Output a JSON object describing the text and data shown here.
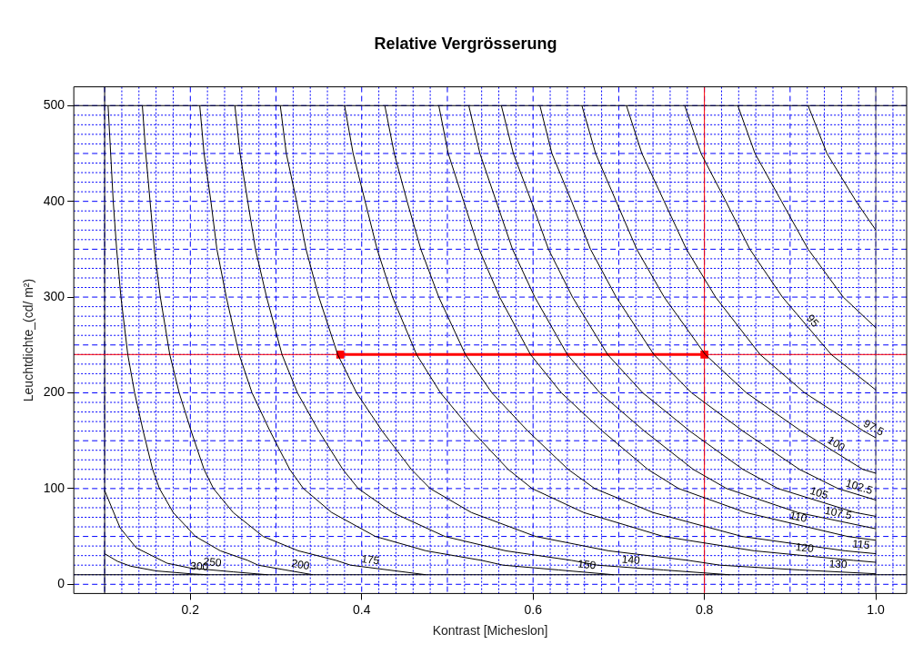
{
  "chart_data": {
    "type": "line",
    "title": "Relative Vergrösserung",
    "xlabel": "Kontrast [Micheslon]",
    "ylabel": "Leuchtdichte_(cd/ m²)",
    "xlim": [
      0.064,
      1.036
    ],
    "ylim": [
      -9.6,
      519.6
    ],
    "xticks": [
      {
        "value": 0.1,
        "label": null
      },
      {
        "value": 0.12,
        "label": null
      },
      {
        "value": 0.14,
        "label": null
      },
      {
        "value": 0.16,
        "label": null
      },
      {
        "value": 0.18,
        "label": null
      },
      0.2,
      {
        "value": 0.22,
        "label": null
      },
      {
        "value": 0.24,
        "label": null
      },
      {
        "value": 0.26,
        "label": null
      },
      {
        "value": 0.28,
        "label": null
      },
      {
        "value": 0.3,
        "label": null
      },
      {
        "value": 0.32,
        "label": null
      },
      {
        "value": 0.34,
        "label": null
      },
      {
        "value": 0.36,
        "label": null
      },
      {
        "value": 0.38,
        "label": null
      },
      0.4,
      {
        "value": 0.42,
        "label": null
      },
      {
        "value": 0.44,
        "label": null
      },
      {
        "value": 0.46,
        "label": null
      },
      {
        "value": 0.48,
        "label": null
      },
      {
        "value": 0.5,
        "label": null
      },
      {
        "value": 0.52,
        "label": null
      },
      {
        "value": 0.54,
        "label": null
      },
      {
        "value": 0.56,
        "label": null
      },
      {
        "value": 0.58,
        "label": null
      },
      0.6,
      {
        "value": 0.62,
        "label": null
      },
      {
        "value": 0.64,
        "label": null
      },
      {
        "value": 0.66,
        "label": null
      },
      {
        "value": 0.68,
        "label": null
      },
      {
        "value": 0.7,
        "label": null
      },
      {
        "value": 0.72,
        "label": null
      },
      {
        "value": 0.74,
        "label": null
      },
      {
        "value": 0.76,
        "label": null
      },
      {
        "value": 0.78,
        "label": null
      },
      0.8,
      {
        "value": 0.82,
        "label": null
      },
      {
        "value": 0.84,
        "label": null
      },
      {
        "value": 0.86,
        "label": null
      },
      {
        "value": 0.88,
        "label": null
      },
      {
        "value": 0.9,
        "label": null
      },
      {
        "value": 0.92,
        "label": null
      },
      {
        "value": 0.94,
        "label": null
      },
      {
        "value": 0.96,
        "label": null
      },
      {
        "value": 0.98,
        "label": null
      },
      {
        "value": 1,
        "label": "1.0"
      },
      {
        "value": 1.02,
        "label": null
      }
    ],
    "yticks": [
      0,
      {
        "value": 10,
        "label": null
      },
      {
        "value": 20,
        "label": null
      },
      {
        "value": 30,
        "label": null
      },
      {
        "value": 40,
        "label": null
      },
      {
        "value": 50,
        "label": null
      },
      {
        "value": 60,
        "label": null
      },
      {
        "value": 70,
        "label": null
      },
      {
        "value": 80,
        "label": null
      },
      {
        "value": 90,
        "label": null
      },
      100,
      {
        "value": 110,
        "label": null
      },
      {
        "value": 120,
        "label": null
      },
      {
        "value": 130,
        "label": null
      },
      {
        "value": 140,
        "label": null
      },
      {
        "value": 150,
        "label": null
      },
      {
        "value": 160,
        "label": null
      },
      {
        "value": 170,
        "label": null
      },
      {
        "value": 180,
        "label": null
      },
      {
        "value": 190,
        "label": null
      },
      200,
      {
        "value": 210,
        "label": null
      },
      {
        "value": 220,
        "label": null
      },
      {
        "value": 230,
        "label": null
      },
      {
        "value": 240,
        "label": null
      },
      {
        "value": 250,
        "label": null
      },
      {
        "value": 260,
        "label": null
      },
      {
        "value": 270,
        "label": null
      },
      {
        "value": 280,
        "label": null
      },
      {
        "value": 290,
        "label": null
      },
      300,
      {
        "value": 310,
        "label": null
      },
      {
        "value": 320,
        "label": null
      },
      {
        "value": 330,
        "label": null
      },
      {
        "value": 340,
        "label": null
      },
      {
        "value": 350,
        "label": null
      },
      {
        "value": 360,
        "label": null
      },
      {
        "value": 370,
        "label": null
      },
      {
        "value": 380,
        "label": null
      },
      {
        "value": 390,
        "label": null
      },
      400,
      {
        "value": 410,
        "label": null
      },
      {
        "value": 420,
        "label": null
      },
      {
        "value": 430,
        "label": null
      },
      {
        "value": 440,
        "label": null
      },
      {
        "value": 450,
        "label": null
      },
      {
        "value": 460,
        "label": null
      },
      {
        "value": 470,
        "label": null
      },
      {
        "value": 480,
        "label": null
      },
      {
        "value": 490,
        "label": null
      },
      500
    ],
    "grid": true,
    "marker": "none",
    "line_style": "solid",
    "ref_lines": [
      {
        "axis": "x",
        "value": 0.1,
        "color": "#000000"
      },
      {
        "axis": "x",
        "value": 1,
        "color": "#555555"
      },
      {
        "axis": "y",
        "value": 10,
        "color": "#000000"
      },
      {
        "axis": "y",
        "value": 500,
        "color": "#000000"
      },
      {
        "axis": "x",
        "value": 0.8,
        "color": "#ff0000"
      },
      {
        "axis": "y",
        "value": 240,
        "color": "#ff0000"
      }
    ],
    "series": [
      {
        "name": "300",
        "color": "#000000",
        "x": [
          0.1,
          0.115,
          0.13,
          0.16,
          0.2,
          0.22
        ],
        "values": [
          32,
          24,
          19,
          14,
          11,
          10
        ]
      },
      {
        "name": "250",
        "color": "#000000",
        "x": [
          0.1,
          0.118,
          0.137,
          0.173,
          0.2,
          0.25,
          0.29
        ],
        "values": [
          98,
          59,
          38,
          22,
          17,
          13,
          10
        ]
      },
      {
        "name": "200",
        "color": "#000000",
        "x": [
          0.104,
          0.107,
          0.11,
          0.114,
          0.119,
          0.127,
          0.135,
          0.145,
          0.156,
          0.164,
          0.18,
          0.206,
          0.235,
          0.267,
          0.279,
          0.311,
          0.343
        ],
        "values": [
          500,
          450,
          400,
          350,
          300,
          240,
          200,
          160,
          120,
          100,
          75,
          50,
          35,
          25,
          20,
          15,
          10
        ]
      },
      {
        "name": "175",
        "color": "#000000",
        "x": [
          0.144,
          0.148,
          0.153,
          0.158,
          0.165,
          0.176,
          0.187,
          0.201,
          0.216,
          0.227,
          0.25,
          0.285,
          0.326,
          0.37,
          0.387,
          0.431,
          0.475
        ],
        "values": [
          500,
          450,
          400,
          350,
          300,
          240,
          200,
          160,
          120,
          100,
          75,
          50,
          35,
          25,
          20,
          15,
          10
        ]
      },
      {
        "name": "150",
        "color": "#000000",
        "x": [
          0.211,
          0.216,
          0.224,
          0.231,
          0.242,
          0.257,
          0.272,
          0.293,
          0.316,
          0.332,
          0.365,
          0.416,
          0.475,
          0.54,
          0.565,
          0.63,
          0.694
        ],
        "values": [
          500,
          450,
          400,
          350,
          300,
          240,
          200,
          160,
          120,
          100,
          75,
          50,
          35,
          25,
          20,
          15,
          10
        ]
      },
      {
        "name": "140",
        "color": "#000000",
        "x": [
          0.252,
          0.258,
          0.267,
          0.276,
          0.289,
          0.307,
          0.325,
          0.35,
          0.378,
          0.396,
          0.436,
          0.497,
          0.568,
          0.645,
          0.675,
          0.752,
          0.829
        ],
        "values": [
          500,
          450,
          400,
          350,
          300,
          240,
          200,
          160,
          120,
          100,
          75,
          50,
          35,
          25,
          20,
          15,
          10
        ]
      },
      {
        "name": "130",
        "color": "#000000",
        "x": [
          0.305,
          0.312,
          0.324,
          0.335,
          0.35,
          0.372,
          0.394,
          0.424,
          0.458,
          0.48,
          0.528,
          0.603,
          0.688,
          0.781,
          0.818,
          0.911,
          1.0
        ],
        "values": [
          500,
          450,
          400,
          350,
          300,
          240,
          200,
          160,
          120,
          100,
          75,
          50,
          35,
          25,
          20,
          15,
          11
        ]
      },
      {
        "name": "120",
        "color": "#000000",
        "x": [
          0.38,
          0.39,
          0.404,
          0.418,
          0.436,
          0.464,
          0.492,
          0.529,
          0.571,
          0.599,
          0.659,
          0.752,
          0.858,
          0.974,
          1.0
        ],
        "values": [
          500,
          450,
          400,
          350,
          300,
          240,
          200,
          160,
          120,
          100,
          75,
          50,
          35,
          25,
          23
        ]
      },
      {
        "name": "115",
        "color": "#000000",
        "x": [
          0.427,
          0.438,
          0.453,
          0.469,
          0.49,
          0.521,
          0.552,
          0.594,
          0.641,
          0.672,
          0.74,
          0.844,
          0.964,
          1.0
        ],
        "values": [
          500,
          450,
          400,
          350,
          300,
          240,
          200,
          160,
          120,
          100,
          75,
          50,
          35,
          32
        ]
      },
      {
        "name": "110",
        "color": "#000000",
        "x": [
          0.49,
          0.501,
          0.519,
          0.537,
          0.561,
          0.597,
          0.633,
          0.681,
          0.734,
          0.77,
          0.848,
          0.967,
          1.0
        ],
        "values": [
          500,
          450,
          400,
          350,
          300,
          240,
          200,
          160,
          120,
          100,
          75,
          50,
          46
        ]
      },
      {
        "name": "107.5",
        "color": "#000000",
        "x": [
          0.525,
          0.538,
          0.557,
          0.576,
          0.602,
          0.64,
          0.678,
          0.73,
          0.787,
          0.826,
          0.909,
          1.0
        ],
        "values": [
          500,
          450,
          400,
          350,
          300,
          240,
          200,
          160,
          120,
          100,
          75,
          58
        ]
      },
      {
        "name": "105",
        "color": "#000000",
        "x": [
          0.563,
          0.577,
          0.598,
          0.618,
          0.646,
          0.687,
          0.728,
          0.783,
          0.845,
          0.886,
          0.976,
          1.0
        ],
        "values": [
          500,
          450,
          400,
          350,
          300,
          240,
          200,
          160,
          120,
          100,
          75,
          71
        ]
      },
      {
        "name": "102.5",
        "color": "#000000",
        "x": [
          0.608,
          0.622,
          0.645,
          0.667,
          0.697,
          0.741,
          0.785,
          0.845,
          0.911,
          0.956,
          1.0
        ],
        "values": [
          500,
          450,
          400,
          350,
          300,
          240,
          200,
          160,
          120,
          100,
          88
        ]
      },
      {
        "name": "100",
        "color": "#000000",
        "x": [
          0.657,
          0.673,
          0.697,
          0.721,
          0.753,
          0.801,
          0.849,
          0.913,
          0.985,
          1.0
        ],
        "values": [
          500,
          450,
          400,
          350,
          300,
          240,
          200,
          160,
          120,
          116
        ]
      },
      {
        "name": "97.5",
        "color": "#000000",
        "x": [
          0.709,
          0.727,
          0.753,
          0.779,
          0.813,
          0.865,
          0.917,
          0.986,
          1.0
        ],
        "values": [
          500,
          450,
          400,
          350,
          300,
          240,
          200,
          160,
          153
        ]
      },
      {
        "name": "95",
        "color": "#000000",
        "x": [
          0.777,
          0.796,
          0.825,
          0.853,
          0.891,
          0.948,
          1.0
        ],
        "values": [
          500,
          450,
          400,
          350,
          300,
          240,
          203
        ]
      },
      {
        "color": "#000000",
        "x": [
          0.839,
          0.859,
          0.89,
          0.921,
          0.962,
          1.0
        ],
        "values": [
          500,
          450,
          400,
          350,
          300,
          268
        ]
      },
      {
        "color": "#000000",
        "x": [
          0.921,
          0.943,
          0.977,
          1.0
        ],
        "values": [
          500,
          450,
          400,
          370
        ]
      },
      {
        "color": "#ff0000",
        "marker": "square",
        "x": [
          0.375,
          0.8
        ],
        "values": [
          240,
          240
        ]
      }
    ]
  }
}
